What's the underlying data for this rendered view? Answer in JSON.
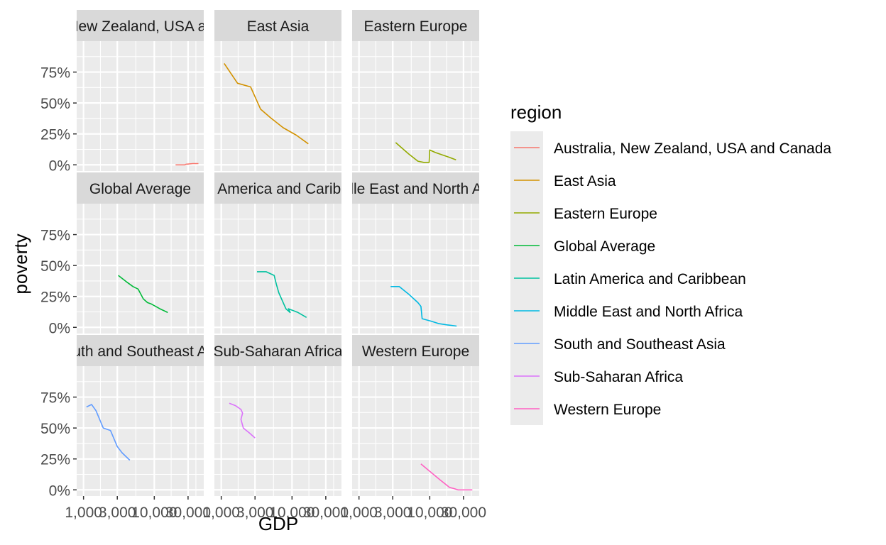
{
  "chart_data": {
    "type": "line",
    "title": "",
    "xlabel": "GDP",
    "ylabel": "poverty",
    "x_scale": "log10",
    "xlim": [
      800,
      50000
    ],
    "ylim": [
      -0.05,
      1.0
    ],
    "x_ticks": [
      1000,
      3000,
      10000,
      30000
    ],
    "x_tick_labels": [
      "1,000",
      "3,000",
      "10,000",
      "30,000"
    ],
    "y_ticks": [
      0,
      0.25,
      0.5,
      0.75
    ],
    "y_tick_labels": [
      "0%",
      "25%",
      "50%",
      "75%"
    ],
    "grid": true,
    "legend": {
      "title": "region",
      "position": "right"
    },
    "facets": [
      {
        "name": "Australia, New Zealand, USA and Canada",
        "strip_label": "Australia, New Zealand, USA and Canada",
        "color": "#F8766D",
        "x": [
          20000,
          27000,
          28000,
          35000,
          42000
        ],
        "y": [
          0.0,
          0.0,
          0.005,
          0.01,
          0.01
        ]
      },
      {
        "name": "East Asia",
        "strip_label": "East Asia",
        "color": "#D39200",
        "x": [
          1100,
          1700,
          2600,
          3600,
          5000,
          7500,
          11500,
          17000
        ],
        "y": [
          0.82,
          0.66,
          0.63,
          0.45,
          0.38,
          0.3,
          0.24,
          0.17
        ]
      },
      {
        "name": "Eastern Europe",
        "strip_label": "Eastern Europe",
        "color": "#93AA00",
        "x": [
          3300,
          5000,
          6800,
          8200,
          9800,
          10000,
          12000,
          15000,
          19000,
          23500
        ],
        "y": [
          0.18,
          0.09,
          0.03,
          0.02,
          0.02,
          0.12,
          0.1,
          0.08,
          0.06,
          0.04
        ]
      },
      {
        "name": "Global Average",
        "strip_label": "Global Average",
        "color": "#00BA38",
        "x": [
          3100,
          4000,
          5000,
          5900,
          7000,
          8000,
          9000,
          12000,
          15500
        ],
        "y": [
          0.42,
          0.37,
          0.33,
          0.31,
          0.23,
          0.2,
          0.19,
          0.15,
          0.12
        ]
      },
      {
        "name": "Latin America and Caribbean",
        "strip_label": "Latin America and Caribbean",
        "color": "#00C19F",
        "x": [
          3200,
          4300,
          5600,
          6000,
          6500,
          8200,
          9400,
          8900,
          12200,
          16000
        ],
        "y": [
          0.45,
          0.45,
          0.42,
          0.35,
          0.28,
          0.15,
          0.12,
          0.15,
          0.12,
          0.08
        ]
      },
      {
        "name": "Middle East and North Africa",
        "strip_label": "Middle East and North Africa",
        "color": "#00B9E3",
        "x": [
          2800,
          3700,
          5000,
          6800,
          7500,
          7800,
          10500,
          13500,
          17500,
          24000
        ],
        "y": [
          0.33,
          0.33,
          0.27,
          0.2,
          0.17,
          0.07,
          0.05,
          0.03,
          0.02,
          0.01
        ]
      },
      {
        "name": "South and Southeast Asia",
        "strip_label": "South and Southeast Asia",
        "color": "#619CFF",
        "x": [
          1100,
          1300,
          1500,
          1900,
          2400,
          3000,
          3500,
          4500
        ],
        "y": [
          0.67,
          0.69,
          0.64,
          0.5,
          0.48,
          0.35,
          0.3,
          0.24
        ]
      },
      {
        "name": "Sub-Saharan Africa",
        "strip_label": "Sub-Saharan Africa",
        "color": "#DB72FB",
        "x": [
          1300,
          1600,
          1900,
          2000,
          1900,
          2050,
          2500,
          3000
        ],
        "y": [
          0.7,
          0.68,
          0.65,
          0.62,
          0.57,
          0.5,
          0.46,
          0.42
        ]
      },
      {
        "name": "Western Europe",
        "strip_label": "Western Europe",
        "color": "#FF61C3",
        "x": [
          7500,
          10000,
          14000,
          19000,
          22000,
          25000,
          32000,
          40000
        ],
        "y": [
          0.21,
          0.15,
          0.08,
          0.02,
          0.01,
          0.0,
          0.0,
          0.0
        ]
      }
    ]
  }
}
